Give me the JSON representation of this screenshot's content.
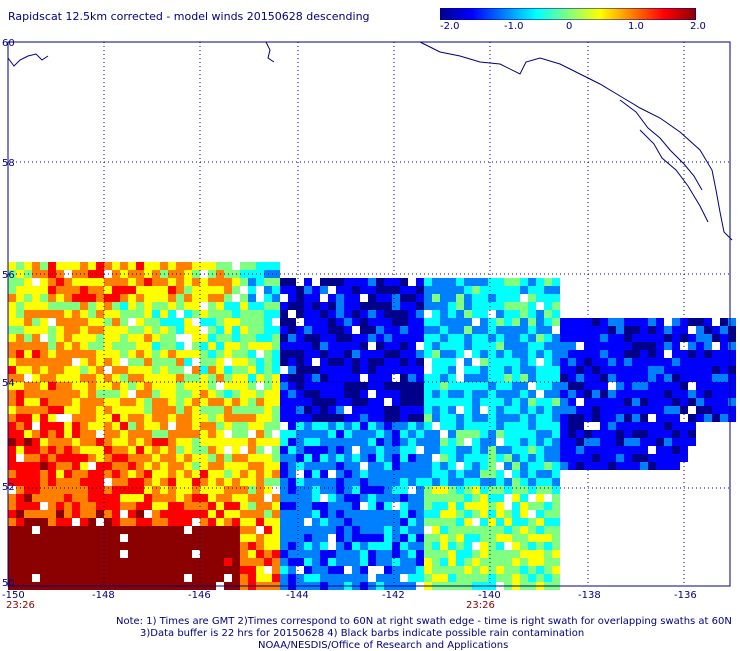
{
  "title": "Rapidscat 12.5km corrected - model winds 20150628 descending",
  "colorbar": {
    "tick_labels": [
      "-2.0",
      "-1.0",
      "0",
      "1.0",
      "2.0"
    ],
    "tick_values": [
      -2.0,
      -1.0,
      0,
      1.0,
      2.0
    ],
    "colors": [
      "#00008b",
      "#0000ff",
      "#0080ff",
      "#00ffff",
      "#80ff80",
      "#ffff00",
      "#ff8000",
      "#ff0000",
      "#8b0000"
    ]
  },
  "map": {
    "lat_labels": [
      "60",
      "58",
      "56",
      "54",
      "52",
      "50"
    ],
    "lon_labels": [
      "-150",
      "-148",
      "-146",
      "-144",
      "-142",
      "-140",
      "-138",
      "-136"
    ],
    "coast_color": "#000080",
    "grid_color": "#000080"
  },
  "time_labels": [
    "23:26",
    "23:26"
  ],
  "notes": {
    "line1": "Note: 1) Times are GMT 2)Times correspond to 60N at right swath edge - time is right swath for overlapping swaths at 60N",
    "line2": "3)Data buffer is 22 hrs for 20150628 4) Black barbs indicate possible rain contamination",
    "line3": "NOAA/NESDIS/Office of Research and Applications"
  }
}
